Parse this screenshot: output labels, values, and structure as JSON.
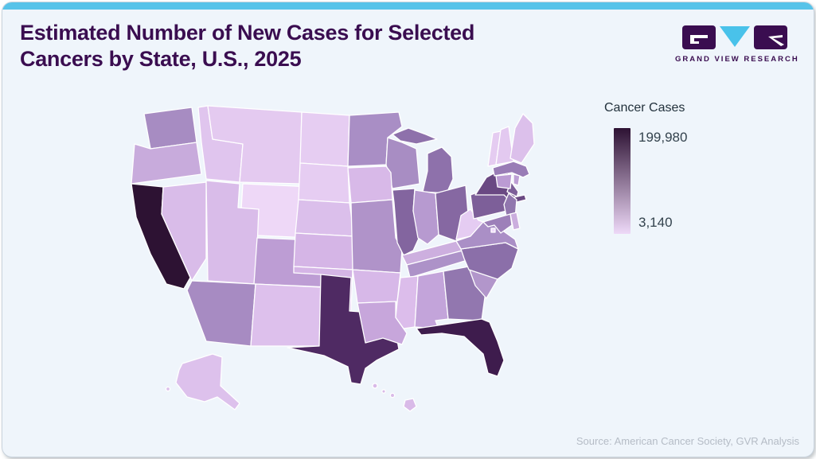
{
  "frame": {
    "top_bar_color": "#57c3e9",
    "card_bg": "#eff5fb",
    "border_color": "#c9d3dd"
  },
  "header": {
    "title_line1": "Estimated Number of New Cases for Selected",
    "title_line2": "Cancers by State, U.S., 2025",
    "title_color": "#3a0d50"
  },
  "logo": {
    "brand": "GRAND VIEW RESEARCH",
    "purple": "#3a0d50",
    "cyan": "#49c2ea"
  },
  "legend": {
    "title": "Cancer Cases",
    "max_label": "199,980",
    "min_label": "3,140",
    "gradient_top": "#2d1233",
    "gradient_bottom": "#eed9f8"
  },
  "source": {
    "text": "Source: American Cancer Society, GVR Analysis",
    "color": "#b5bcc6"
  },
  "chart_data": {
    "type": "heatmap",
    "subtype": "us-state-choropleth",
    "title": "Estimated Number of New Cases for Selected Cancers by State, U.S., 2025",
    "region": "United States",
    "year": "2025",
    "unit": "estimated new cancer cases",
    "legend_title": "Cancer Cases",
    "scale": {
      "min": 3140,
      "max": 199980,
      "min_label": "3,140",
      "max_label": "199,980"
    },
    "note": "Only the scale extremes (3,140 and 199,980) are labeled in the image; per-state values are estimated from each state's fill on the color scale.",
    "states": [
      {
        "id": "CA",
        "name": "California",
        "value_est": 199980,
        "color": "#2d1233"
      },
      {
        "id": "FL",
        "name": "Florida",
        "value_est": 179950,
        "color": "#3e1c4d"
      },
      {
        "id": "TX",
        "name": "Texas",
        "value_est": 148150,
        "color": "#4f2a63"
      },
      {
        "id": "NY",
        "name": "New York",
        "value_est": 125280,
        "color": "#6a4983"
      },
      {
        "id": "PA",
        "name": "Pennsylvania",
        "value_est": 85640,
        "color": "#7d5f99"
      },
      {
        "id": "IL",
        "name": "Illinois",
        "value_est": 76150,
        "color": "#83659f"
      },
      {
        "id": "OH",
        "name": "Ohio",
        "value_est": 73760,
        "color": "#8668a2"
      },
      {
        "id": "NC",
        "name": "North Carolina",
        "value_est": 66380,
        "color": "#8b6fa9"
      },
      {
        "id": "MI",
        "name": "Michigan",
        "value_est": 63480,
        "color": "#8e71ab"
      },
      {
        "id": "GA",
        "name": "Georgia",
        "value_est": 62500,
        "color": "#9277af"
      },
      {
        "id": "NJ",
        "name": "New Jersey",
        "value_est": 56760,
        "color": "#9177ae"
      },
      {
        "id": "VA",
        "name": "Virginia",
        "value_est": 49010,
        "color": "#aa8fc6"
      },
      {
        "id": "WA",
        "name": "Washington",
        "value_est": 44690,
        "color": "#a78cc2"
      },
      {
        "id": "AZ",
        "name": "Arizona",
        "value_est": 44310,
        "color": "#a78bc2"
      },
      {
        "id": "MA",
        "name": "Massachusetts",
        "value_est": 43390,
        "color": "#997cb6"
      },
      {
        "id": "TN",
        "name": "Tennessee",
        "value_est": 43190,
        "color": "#ad92c8"
      },
      {
        "id": "IN",
        "name": "Indiana",
        "value_est": 41030,
        "color": "#b79ad0"
      },
      {
        "id": "MO",
        "name": "Missouri",
        "value_est": 38880,
        "color": "#b093c9"
      },
      {
        "id": "WI",
        "name": "Wisconsin",
        "value_est": 38060,
        "color": "#a88dc3"
      },
      {
        "id": "MD",
        "name": "Maryland",
        "value_est": 37860,
        "color": "#9d80b9"
      },
      {
        "id": "MN",
        "name": "Minnesota",
        "value_est": 36240,
        "color": "#a98ec5"
      },
      {
        "id": "SC",
        "name": "South Carolina",
        "value_est": 34990,
        "color": "#b296cb"
      },
      {
        "id": "CO",
        "name": "Colorado",
        "value_est": 32650,
        "color": "#bd9dd4"
      },
      {
        "id": "AL",
        "name": "Alabama",
        "value_est": 31280,
        "color": "#c3a4da"
      },
      {
        "id": "KY",
        "name": "Kentucky",
        "value_est": 29860,
        "color": "#cdafdf"
      },
      {
        "id": "LA",
        "name": "Louisiana",
        "value_est": 28490,
        "color": "#c7a6db"
      },
      {
        "id": "OR",
        "name": "Oregon",
        "value_est": 25560,
        "color": "#c8abdc"
      },
      {
        "id": "OK",
        "name": "Oklahoma",
        "value_est": 23210,
        "color": "#d5b5e6"
      },
      {
        "id": "CT",
        "name": "Connecticut",
        "value_est": 22950,
        "color": "#bb9bd3"
      },
      {
        "id": "IA",
        "name": "Iowa",
        "value_est": 20860,
        "color": "#d8b9e8"
      },
      {
        "id": "AR",
        "name": "Arkansas",
        "value_est": 19970,
        "color": "#d7b8e8"
      },
      {
        "id": "MS",
        "name": "Mississippi",
        "value_est": 18850,
        "color": "#dcbdeb"
      },
      {
        "id": "NV",
        "name": "Nevada",
        "value_est": 17840,
        "color": "#d9bce9"
      },
      {
        "id": "KS",
        "name": "Kansas",
        "value_est": 17330,
        "color": "#d5b5e6"
      },
      {
        "id": "UT",
        "name": "Utah",
        "value_est": 13010,
        "color": "#d9bce9"
      },
      {
        "id": "WV",
        "name": "West Virginia",
        "value_est": 12470,
        "color": "#e5ccf2"
      },
      {
        "id": "ID",
        "name": "Idaho",
        "value_est": 11880,
        "color": "#e0c5ee"
      },
      {
        "id": "NM",
        "name": "New Mexico",
        "value_est": 11570,
        "color": "#ddc0ec"
      },
      {
        "id": "NE",
        "name": "Nebraska",
        "value_est": 11480,
        "color": "#dbbfeb"
      },
      {
        "id": "ME",
        "name": "Maine",
        "value_est": 9860,
        "color": "#dcc0eb"
      },
      {
        "id": "NH",
        "name": "New Hampshire",
        "value_est": 9840,
        "color": "#e3c9f0"
      },
      {
        "id": "HI",
        "name": "Hawaii",
        "value_est": 8860,
        "color": "#d9bae8"
      },
      {
        "id": "DE",
        "name": "Delaware",
        "value_est": 7350,
        "color": "#cbaede"
      },
      {
        "id": "MT",
        "name": "Montana",
        "value_est": 7160,
        "color": "#e4caf0"
      },
      {
        "id": "RI",
        "name": "Rhode Island",
        "value_est": 6770,
        "color": "#bd9fd5"
      },
      {
        "id": "SD",
        "name": "South Dakota",
        "value_est": 5640,
        "color": "#e6cdf2"
      },
      {
        "id": "ND",
        "name": "North Dakota",
        "value_est": 4460,
        "color": "#e6cdf2"
      },
      {
        "id": "VT",
        "name": "Vermont",
        "value_est": 4410,
        "color": "#e5ccf1"
      },
      {
        "id": "AK",
        "name": "Alaska",
        "value_est": 3770,
        "color": "#ddc1ec"
      },
      {
        "id": "WY",
        "name": "Wyoming",
        "value_est": 3370,
        "color": "#eed8f7"
      },
      {
        "id": "DC",
        "name": "District of Columbia",
        "value_est": 3140,
        "color": "#f0dbfb"
      }
    ]
  }
}
